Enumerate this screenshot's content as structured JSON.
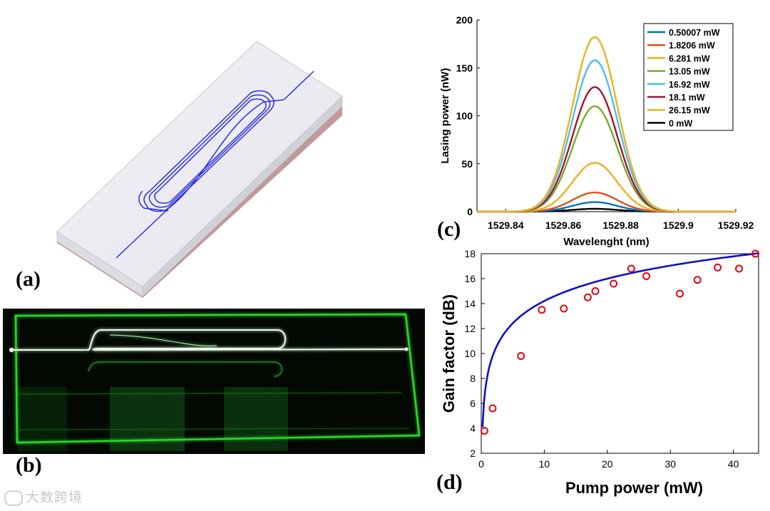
{
  "panels": {
    "a": "(a)",
    "b": "(b)",
    "c": "(c)",
    "d": "(d)"
  },
  "watermark": "大数跨境",
  "chart_data": [
    {
      "id": "c",
      "type": "line",
      "title": "",
      "xlabel": "Wavelenght (nm)",
      "ylabel": "Lasing power (nW)",
      "xlim": [
        1529.83,
        1529.92
      ],
      "ylim": [
        0,
        200
      ],
      "xticks": [
        1529.84,
        1529.86,
        1529.88,
        1529.9,
        1529.92
      ],
      "xtick_labels": [
        "1529.84",
        "1529.86",
        "1529.88",
        "1529.9",
        "1529.92"
      ],
      "yticks": [
        0,
        50,
        100,
        150,
        200
      ],
      "ytick_labels": [
        "0",
        "50",
        "100",
        "150",
        "200"
      ],
      "peak_center": 1529.871,
      "peak_sigma": 0.0078,
      "legend_position": "top-right",
      "series": [
        {
          "name": "0.50007 mW",
          "peak": 10,
          "color": "#0072bd"
        },
        {
          "name": "1.8206 mW",
          "peak": 20,
          "color": "#d95319"
        },
        {
          "name": "6.281 mW",
          "peak": 51,
          "color": "#edb120"
        },
        {
          "name": "13.05 mW",
          "peak": 110,
          "color": "#77ac30"
        },
        {
          "name": "16.92 mW",
          "peak": 158,
          "color": "#4dbeee"
        },
        {
          "name": "18.1 mW",
          "peak": 130,
          "color": "#a2142f"
        },
        {
          "name": "26.15 mW",
          "peak": 182,
          "color": "#edb120"
        },
        {
          "name": "0 mW",
          "peak": 3,
          "color": "#000000"
        }
      ]
    },
    {
      "id": "d",
      "type": "scatter",
      "title": "",
      "xlabel": "Pump power (mW)",
      "ylabel": "Gain factor (dB)",
      "xlim": [
        0,
        44
      ],
      "ylim": [
        2,
        18
      ],
      "xticks": [
        0,
        10,
        20,
        30,
        40
      ],
      "xtick_labels": [
        "0",
        "10",
        "20",
        "30",
        "40"
      ],
      "yticks": [
        2,
        4,
        6,
        8,
        10,
        12,
        14,
        16,
        18
      ],
      "ytick_labels": [
        "2",
        "4",
        "6",
        "8",
        "10",
        "12",
        "14",
        "16",
        "18"
      ],
      "points": {
        "x": [
          0.5,
          1.8,
          6.3,
          9.6,
          13.1,
          16.9,
          18.1,
          21.0,
          23.8,
          26.2,
          31.5,
          34.3,
          37.5,
          40.9,
          43.5
        ],
        "y": [
          3.8,
          5.6,
          9.8,
          13.5,
          13.6,
          14.5,
          15.0,
          15.6,
          16.8,
          16.2,
          14.8,
          15.9,
          16.9,
          16.8,
          18.0
        ]
      },
      "marker_color": "#e8000d",
      "fit": {
        "model": "a + b*ln(x)",
        "a": 8.27,
        "b": 2.58,
        "color": "#1010c8"
      }
    }
  ]
}
